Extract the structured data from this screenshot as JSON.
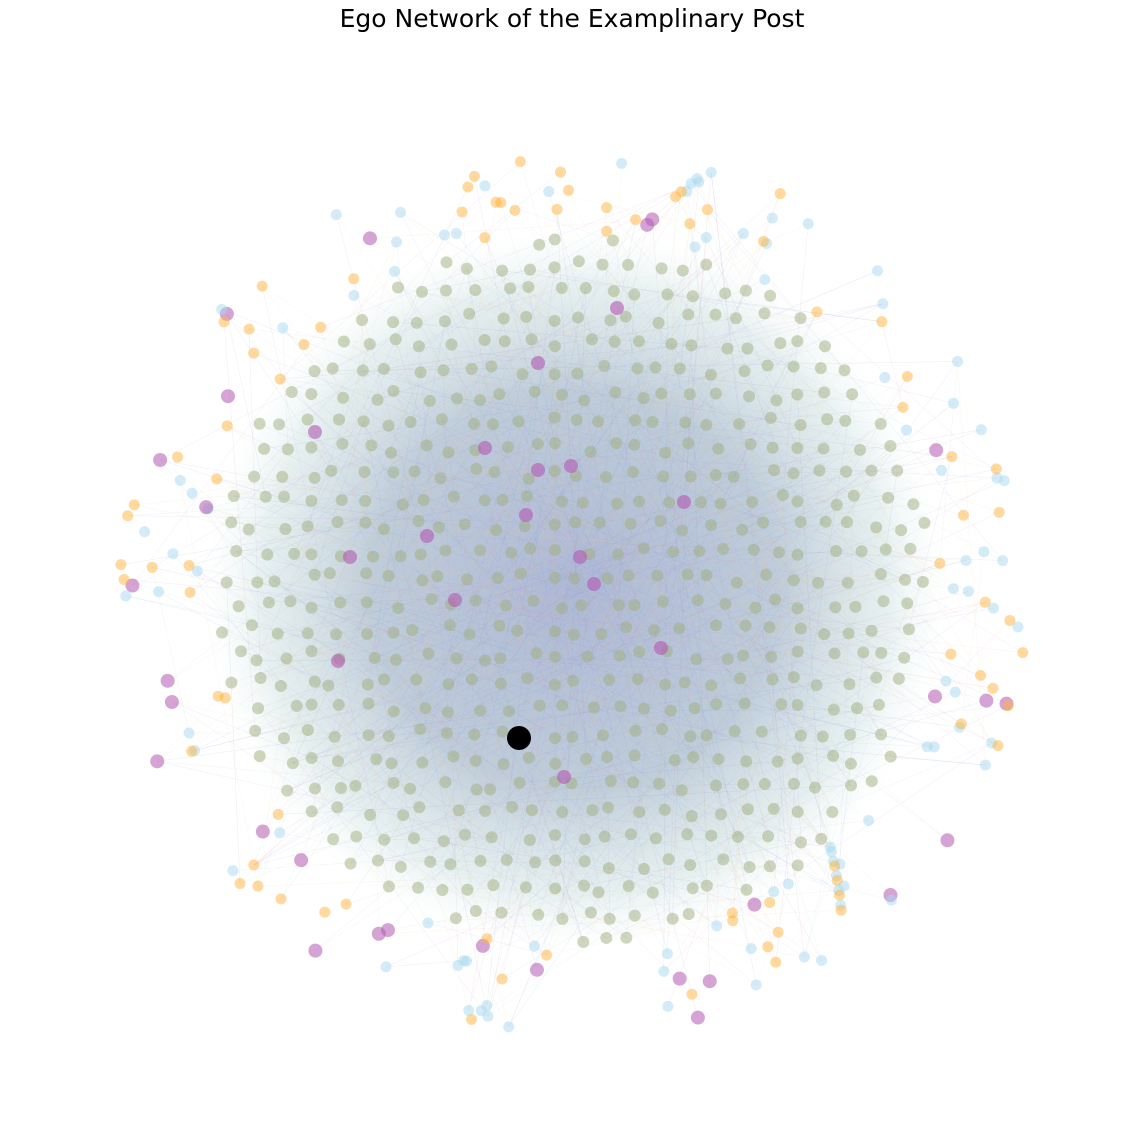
{
  "title": "Ego Network of the Examplinary Post",
  "colors": {
    "ego": "#000000",
    "purple": "#b259b2",
    "olive": "#9fae7e",
    "orange": "#ffb43c",
    "lightblue": "#a8daf0",
    "edge_blue": "#7e95c6",
    "edge_teal": "#a9cfd4",
    "edge_orange": "#ffc27a",
    "edge_purple": "#c58ccf"
  },
  "groups": [
    {
      "key": "ego"
    },
    {
      "key": "purple"
    },
    {
      "key": "olive"
    },
    {
      "key": "orange"
    },
    {
      "key": "lightblue"
    }
  ]
}
